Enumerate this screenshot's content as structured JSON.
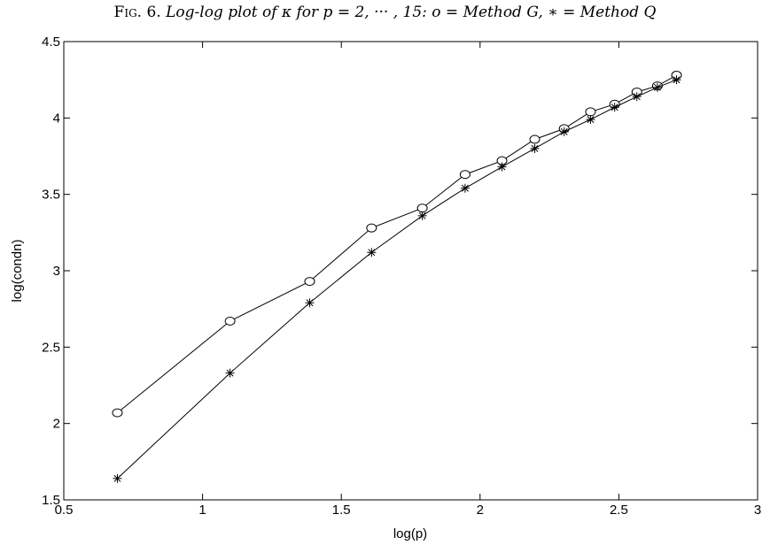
{
  "caption": {
    "prefix": "Fig. 6.",
    "text": "Log-log plot of κ for p = 2, ··· , 15: o = Method G, ∗ = Method Q"
  },
  "chart_data": {
    "type": "line",
    "title": "",
    "xlabel": "log(p)",
    "ylabel": "log(condn)",
    "xlim": [
      0.5,
      3
    ],
    "ylim": [
      1.5,
      4.5
    ],
    "xticks": [
      0.5,
      1,
      1.5,
      2,
      2.5,
      3
    ],
    "yticks": [
      1.5,
      2,
      2.5,
      3,
      3.5,
      4,
      4.5
    ],
    "xtick_labels": [
      "0.5",
      "1",
      "1.5",
      "2",
      "2.5",
      "3"
    ],
    "ytick_labels": [
      "1.5",
      "2",
      "2.5",
      "3",
      "3.5",
      "4",
      "4.5"
    ],
    "grid": false,
    "x": [
      0.693,
      1.099,
      1.386,
      1.609,
      1.792,
      1.946,
      2.079,
      2.197,
      2.303,
      2.398,
      2.485,
      2.565,
      2.639,
      2.708
    ],
    "series": [
      {
        "marker": "circle",
        "values": [
          2.07,
          2.67,
          2.93,
          3.28,
          3.41,
          3.63,
          3.72,
          3.86,
          3.93,
          4.04,
          4.09,
          4.17,
          4.21,
          4.28
        ]
      },
      {
        "marker": "asterisk",
        "values": [
          1.64,
          2.33,
          2.79,
          3.12,
          3.36,
          3.54,
          3.68,
          3.8,
          3.91,
          3.99,
          4.07,
          4.14,
          4.2,
          4.25
        ]
      }
    ]
  }
}
